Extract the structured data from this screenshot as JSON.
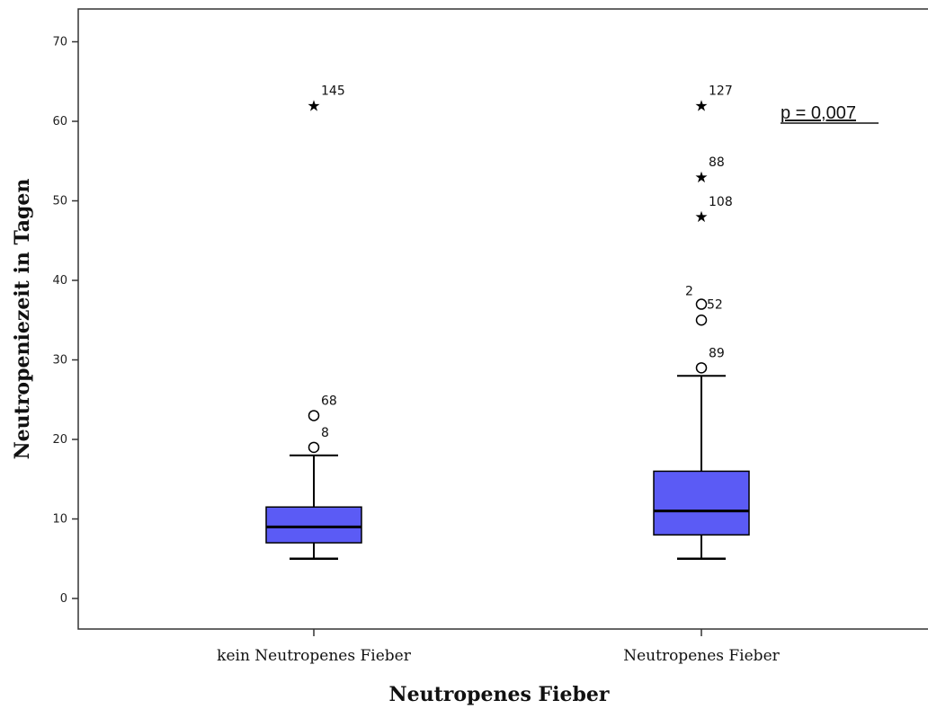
{
  "chart_data": {
    "type": "boxplot",
    "title": "",
    "xlabel": "Neutropenes Fieber",
    "ylabel": "Neutropeniezeit in Tagen",
    "ylim": [
      -4,
      74
    ],
    "yticks": [
      0,
      10,
      20,
      30,
      40,
      50,
      60,
      70
    ],
    "grid": false,
    "categories": [
      "kein Neutropenes Fieber",
      "Neutropenes Fieber"
    ],
    "box_color": "#5b5bf5",
    "groups": [
      {
        "category": "kein Neutropenes Fieber",
        "whisker_low": 5,
        "q1": 7,
        "median": 9,
        "q3": 11.5,
        "whisker_high": 18,
        "outliers": [
          {
            "value": 19,
            "label": "8",
            "marker": "circle"
          },
          {
            "value": 23,
            "label": "68",
            "marker": "circle"
          },
          {
            "value": 62,
            "label": "145",
            "marker": "star"
          }
        ]
      },
      {
        "category": "Neutropenes Fieber",
        "whisker_low": 5,
        "q1": 8,
        "median": 11,
        "q3": 16,
        "whisker_high": 28,
        "outliers": [
          {
            "value": 29,
            "label": "89",
            "marker": "circle"
          },
          {
            "value": 35,
            "label": "",
            "marker": "circle"
          },
          {
            "value": 37,
            "label": "2",
            "marker": "circle"
          },
          {
            "value": 37,
            "label": "52",
            "marker": "circle"
          },
          {
            "value": 48,
            "label": "108",
            "marker": "star"
          },
          {
            "value": 53,
            "label": "88",
            "marker": "star"
          },
          {
            "value": 62,
            "label": "127",
            "marker": "star"
          }
        ]
      }
    ],
    "annotations": [
      {
        "text": "p = 0,007",
        "position": "top-right"
      }
    ]
  }
}
